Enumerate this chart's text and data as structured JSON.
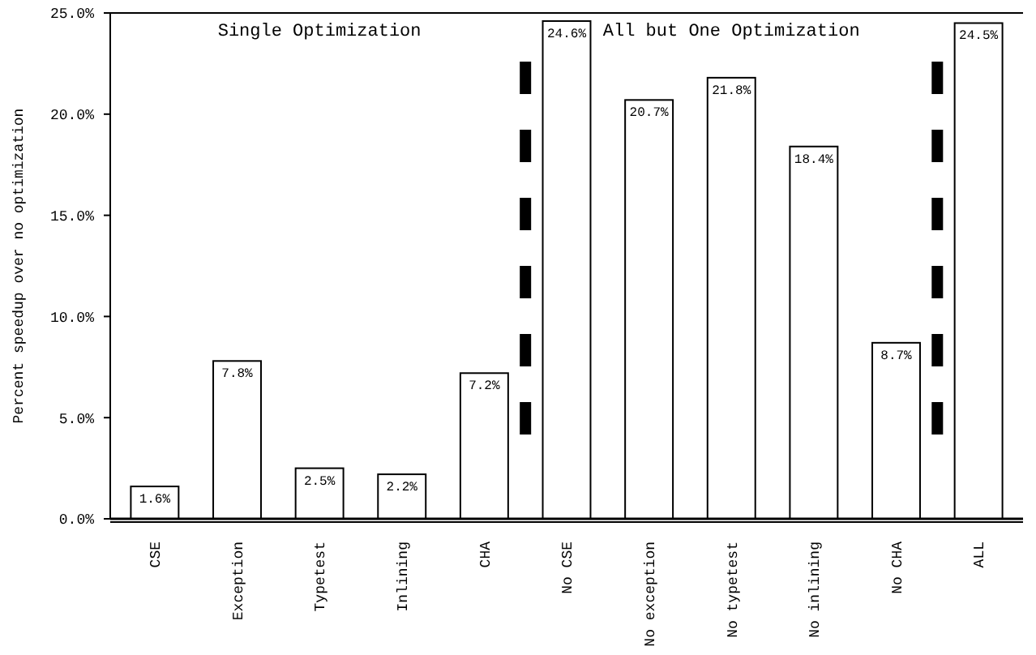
{
  "chart_data": {
    "type": "bar",
    "ylabel": "Percent speedup over no optimization",
    "categories": [
      "CSE",
      "Exception",
      "Typetest",
      "Inlining",
      "CHA",
      "No CSE",
      "No exception",
      "No typetest",
      "No inlining",
      "No CHA",
      "ALL"
    ],
    "values": [
      1.6,
      7.8,
      2.5,
      2.2,
      7.2,
      24.6,
      20.7,
      21.8,
      18.4,
      8.7,
      24.5
    ],
    "value_labels": [
      "1.6%",
      "7.8%",
      "2.5%",
      "2.2%",
      "7.2%",
      "24.6%",
      "20.7%",
      "21.8%",
      "18.4%",
      "8.7%",
      "24.5%"
    ],
    "color": "#ffffff",
    "ylim": [
      0,
      25
    ],
    "yticks": [
      {
        "value": 0,
        "label": "0.0%"
      },
      {
        "value": 5,
        "label": "5.0%"
      },
      {
        "value": 10,
        "label": "10.0%"
      },
      {
        "value": 15,
        "label": "15.0%"
      },
      {
        "value": 20,
        "label": "20.0%"
      },
      {
        "value": 25,
        "label": "25.0%"
      }
    ],
    "annotations": [
      "Single Optimization",
      "All but One Optimization"
    ],
    "grid": false
  }
}
